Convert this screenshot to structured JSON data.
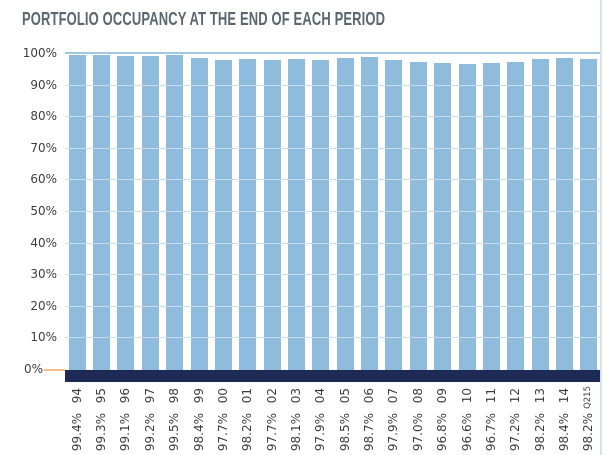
{
  "header": {
    "title": "PORTFOLIO OCCUPANCY AT THE END OF EACH PERIOD"
  },
  "chart_data": {
    "type": "bar",
    "title": "PORTFOLIO OCCUPANCY AT THE END OF EACH PERIOD",
    "categories": [
      "94",
      "95",
      "96",
      "97",
      "98",
      "99",
      "00",
      "01",
      "02",
      "03",
      "04",
      "05",
      "06",
      "07",
      "08",
      "09",
      "10",
      "11",
      "12",
      "13",
      "14",
      "Q215"
    ],
    "values": [
      99.4,
      99.3,
      99.1,
      99.2,
      99.5,
      98.4,
      97.7,
      98.2,
      97.7,
      98.1,
      97.9,
      98.5,
      98.7,
      97.9,
      97.0,
      96.8,
      96.6,
      96.7,
      97.2,
      98.2,
      98.4,
      98.2
    ],
    "value_labels": [
      "99.4%",
      "99.3%",
      "99.1%",
      "99.2%",
      "99.5%",
      "98.4%",
      "97.7%",
      "98.2%",
      "97.7%",
      "98.1%",
      "97.9%",
      "98.5%",
      "98.7%",
      "97.9%",
      "97.0%",
      "96.8%",
      "96.6%",
      "96.7%",
      "97.2%",
      "98.2%",
      "98.4%",
      "98.2%"
    ],
    "yticks": [
      "100%",
      "90%",
      "80%",
      "70%",
      "60%",
      "50%",
      "40%",
      "30%",
      "20%",
      "10%",
      "0%"
    ],
    "ylim": [
      0,
      100
    ],
    "grid": true,
    "legend": "none",
    "xlabel": "",
    "ylabel": "",
    "colors": {
      "bar": "#8FBCDC",
      "gridline": "#C8DEEF",
      "top_gridline": "#A2C7E0",
      "baseline_band": "#1C2A55",
      "zero_tick": "#F2BE8D",
      "axis_label": "#3E3E3E",
      "title": "#5B666E",
      "right_edge": "#D6E3EE"
    }
  }
}
